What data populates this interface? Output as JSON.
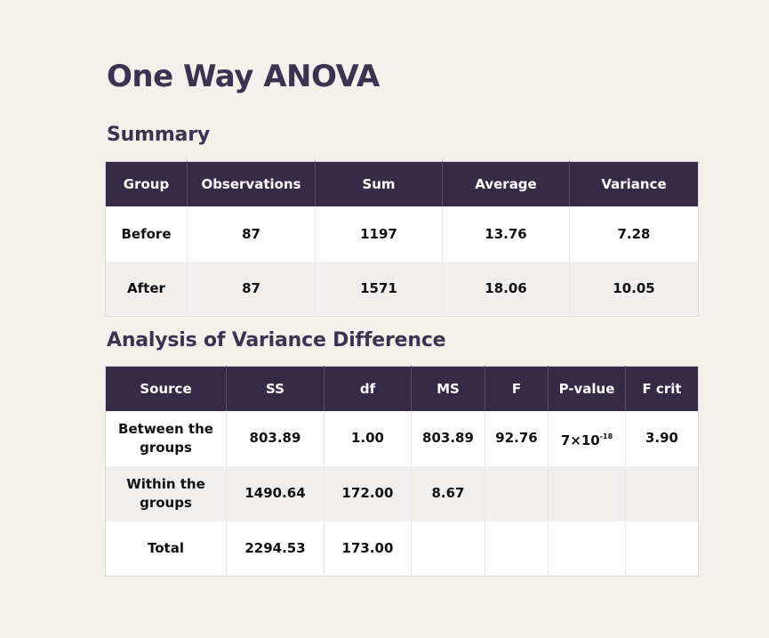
{
  "title": "One Way ANOVA",
  "summary": {
    "heading": "Summary",
    "columns": [
      "Group",
      "Observations",
      "Sum",
      "Average",
      "Variance"
    ],
    "rows": [
      [
        "Before",
        "87",
        "1197",
        "13.76",
        "7.28"
      ],
      [
        "After",
        "87",
        "1571",
        "18.06",
        "10.05"
      ]
    ]
  },
  "anova": {
    "heading": "Analysis of Variance Difference",
    "columns": [
      "Source",
      "SS",
      "df",
      "MS",
      "F",
      "P-value",
      "F crit"
    ],
    "rows": [
      [
        "Between the groups",
        "803.89",
        "1.00",
        "803.89",
        "92.76",
        "7×10",
        "3.90"
      ],
      [
        "Within the groups",
        "1490.64",
        "172.00",
        "8.67",
        "",
        "",
        ""
      ],
      [
        "Total",
        "2294.53",
        "173.00",
        "",
        "",
        "",
        ""
      ]
    ],
    "pvalue_exponent": "-18"
  },
  "colors": {
    "background": "#f3f1ec",
    "header": "#362b47",
    "title": "#3d3350"
  }
}
